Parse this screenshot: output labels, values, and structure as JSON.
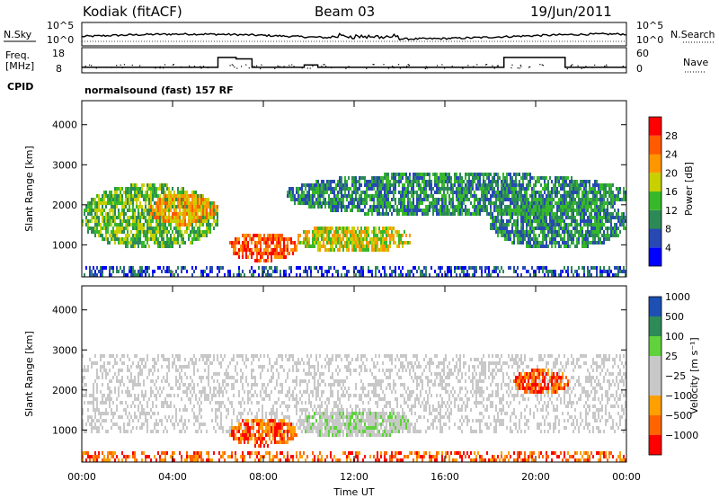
{
  "header": {
    "station": "Kodiak (fitACF)",
    "beam": "Beam 03",
    "date": "19/Jun/2011"
  },
  "noise_panel": {
    "left_label": "N.Sky",
    "right_label": "N.Search",
    "tick_top": "10^5",
    "tick_bottom": "10^0"
  },
  "freq_panel": {
    "left_label_1": "Freq.",
    "left_label_2": "[MHz]",
    "left_tick_top": "18",
    "left_tick_bottom": "8",
    "right_label": "Nave",
    "right_tick_top": "60",
    "right_tick_bottom": "0",
    "cpid_label": "CPID",
    "cpid_text": "normalsound (fast) 157 RF"
  },
  "colors": {
    "power": [
      "#0000ff",
      "#2849b4",
      "#2c8a57",
      "#37b82a",
      "#c8d000",
      "#ff9600",
      "#ff5a00",
      "#ff0000"
    ],
    "velocity": [
      "#ff0000",
      "#ff6400",
      "#ffa000",
      "#c8c8c8",
      "#c8c8c8",
      "#5fd23c",
      "#2e8b57",
      "#1e50b4"
    ],
    "ground": "#c8c8c8"
  },
  "chart_data": [
    {
      "type": "heatmap",
      "name": "power",
      "ylabel": "Slant Range [km]",
      "yticks": [
        "1000",
        "2000",
        "3000",
        "4000"
      ],
      "ytick_values": [
        1000,
        2000,
        3000,
        4000
      ],
      "ylim": [
        200,
        4600
      ],
      "colorbar_label": "Power [dB]",
      "colorbar_ticks": [
        "4",
        "8",
        "12",
        "16",
        "20",
        "24",
        "28"
      ],
      "features": [
        {
          "t0": 0.0,
          "t1": 6.0,
          "r0": 900,
          "r1": 2500,
          "level": 4
        },
        {
          "t0": 3.0,
          "t1": 6.0,
          "r0": 1500,
          "r1": 2300,
          "level": 6
        },
        {
          "t0": 6.5,
          "t1": 9.5,
          "r0": 600,
          "r1": 1300,
          "level": 7
        },
        {
          "t0": 9.5,
          "t1": 14.5,
          "r0": 800,
          "r1": 1500,
          "level": 5
        },
        {
          "t0": 9.0,
          "t1": 24.0,
          "r0": 1700,
          "r1": 2800,
          "level": 3
        },
        {
          "t0": 18.0,
          "t1": 24.0,
          "r0": 900,
          "r1": 2200,
          "level": 3
        }
      ]
    },
    {
      "type": "heatmap",
      "name": "velocity",
      "ylabel": "Slant Range [km]",
      "yticks": [
        "1000",
        "2000",
        "3000",
        "4000"
      ],
      "ytick_values": [
        1000,
        2000,
        3000,
        4000
      ],
      "ylim": [
        200,
        4600
      ],
      "colorbar_label": "Velocity [m s⁻¹]",
      "colorbar_ticks": [
        "1000",
        "500",
        "100",
        "25",
        "−25",
        "−100",
        "−500",
        "−1000"
      ],
      "features": [
        {
          "t0": 6.5,
          "t1": 9.5,
          "r0": 600,
          "r1": 1300,
          "level": 2
        },
        {
          "t0": 9.5,
          "t1": 14.5,
          "r0": 800,
          "r1": 1500,
          "level": 5
        },
        {
          "t0": 19.0,
          "t1": 21.5,
          "r0": 1900,
          "r1": 2500,
          "level": 2
        }
      ]
    }
  ],
  "xaxis": {
    "label": "Time UT",
    "ticks": [
      "00:00",
      "04:00",
      "08:00",
      "12:00",
      "16:00",
      "20:00",
      "00:00"
    ],
    "tick_values": [
      0,
      4,
      8,
      12,
      16,
      20,
      24
    ],
    "xlim": [
      0,
      24
    ]
  },
  "freq_step": {
    "times": [
      0,
      6.0,
      6.0,
      6.8,
      6.8,
      7.5,
      7.5,
      9.8,
      9.8,
      10.4,
      10.4,
      18.6,
      18.6,
      21.3,
      21.3,
      24
    ],
    "freq": [
      11,
      11,
      17.5,
      17.5,
      16.5,
      16.5,
      11,
      11,
      12.5,
      12.5,
      11,
      11,
      17.5,
      17.5,
      11,
      11
    ]
  }
}
